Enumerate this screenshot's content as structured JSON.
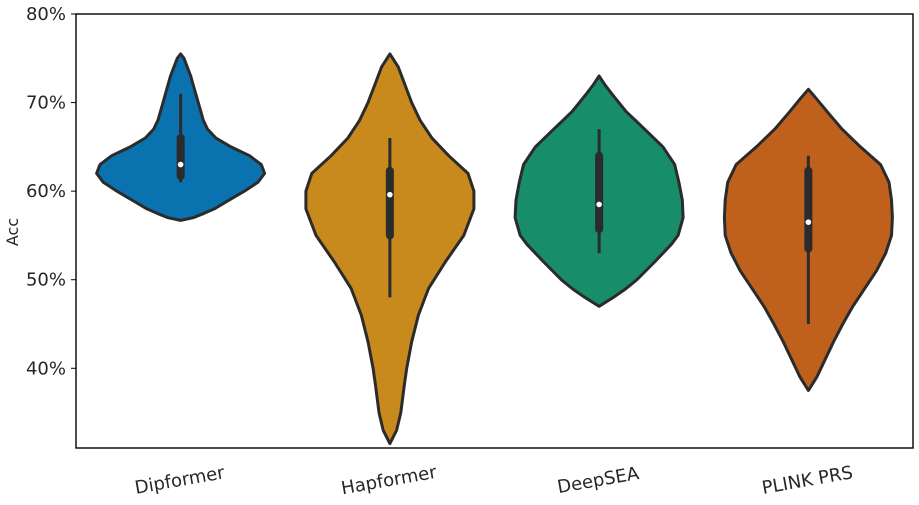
{
  "chart_data": {
    "type": "violin",
    "title": "",
    "xlabel": "",
    "ylabel": "Acc",
    "ylim": [
      0.31,
      0.8
    ],
    "yticks": [
      0.4,
      0.5,
      0.6,
      0.7,
      0.8
    ],
    "ytick_labels": [
      "40%",
      "50%",
      "60%",
      "70%",
      "80%"
    ],
    "categories": [
      "Dipformer",
      "Hapformer",
      "DeepSEA",
      "PLINK PRS"
    ],
    "colors": [
      "#0b72b0",
      "#c98a1d",
      "#178d6a",
      "#c0601d"
    ],
    "grid": false,
    "legend": "none",
    "series": [
      {
        "category": "Dipformer",
        "min": 0.61,
        "q1": 0.617,
        "median": 0.63,
        "q3": 0.66,
        "max": 0.71,
        "violin_range": [
          0.567,
          0.755
        ],
        "density": [
          [
            0.567,
            0.0
          ],
          [
            0.57,
            0.15
          ],
          [
            0.575,
            0.28
          ],
          [
            0.58,
            0.4
          ],
          [
            0.59,
            0.58
          ],
          [
            0.6,
            0.76
          ],
          [
            0.61,
            0.92
          ],
          [
            0.62,
            1.0
          ],
          [
            0.63,
            0.96
          ],
          [
            0.64,
            0.82
          ],
          [
            0.65,
            0.6
          ],
          [
            0.66,
            0.42
          ],
          [
            0.67,
            0.32
          ],
          [
            0.68,
            0.27
          ],
          [
            0.69,
            0.24
          ],
          [
            0.7,
            0.21
          ],
          [
            0.71,
            0.18
          ],
          [
            0.72,
            0.15
          ],
          [
            0.73,
            0.12
          ],
          [
            0.74,
            0.08
          ],
          [
            0.75,
            0.04
          ],
          [
            0.755,
            0.0
          ]
        ]
      },
      {
        "category": "Hapformer",
        "min": 0.48,
        "q1": 0.55,
        "median": 0.596,
        "q3": 0.623,
        "max": 0.66,
        "violin_range": [
          0.315,
          0.755
        ],
        "density": [
          [
            0.315,
            0.0
          ],
          [
            0.33,
            0.08
          ],
          [
            0.35,
            0.13
          ],
          [
            0.38,
            0.17
          ],
          [
            0.4,
            0.2
          ],
          [
            0.43,
            0.26
          ],
          [
            0.46,
            0.34
          ],
          [
            0.49,
            0.46
          ],
          [
            0.52,
            0.66
          ],
          [
            0.55,
            0.88
          ],
          [
            0.58,
            1.0
          ],
          [
            0.6,
            1.0
          ],
          [
            0.62,
            0.93
          ],
          [
            0.64,
            0.7
          ],
          [
            0.66,
            0.5
          ],
          [
            0.68,
            0.36
          ],
          [
            0.7,
            0.26
          ],
          [
            0.72,
            0.18
          ],
          [
            0.74,
            0.1
          ],
          [
            0.755,
            0.0
          ]
        ]
      },
      {
        "category": "DeepSEA",
        "min": 0.53,
        "q1": 0.557,
        "median": 0.585,
        "q3": 0.64,
        "max": 0.67,
        "violin_range": [
          0.47,
          0.73
        ],
        "density": [
          [
            0.47,
            0.0
          ],
          [
            0.48,
            0.17
          ],
          [
            0.49,
            0.32
          ],
          [
            0.5,
            0.45
          ],
          [
            0.52,
            0.66
          ],
          [
            0.54,
            0.86
          ],
          [
            0.55,
            0.94
          ],
          [
            0.57,
            1.0
          ],
          [
            0.59,
            0.99
          ],
          [
            0.61,
            0.95
          ],
          [
            0.63,
            0.9
          ],
          [
            0.65,
            0.76
          ],
          [
            0.67,
            0.54
          ],
          [
            0.69,
            0.32
          ],
          [
            0.71,
            0.15
          ],
          [
            0.72,
            0.07
          ],
          [
            0.73,
            0.0
          ]
        ]
      },
      {
        "category": "PLINK PRS",
        "min": 0.45,
        "q1": 0.535,
        "median": 0.565,
        "q3": 0.623,
        "max": 0.64,
        "violin_range": [
          0.375,
          0.715
        ],
        "density": [
          [
            0.375,
            0.0
          ],
          [
            0.39,
            0.1
          ],
          [
            0.41,
            0.2
          ],
          [
            0.43,
            0.3
          ],
          [
            0.45,
            0.41
          ],
          [
            0.47,
            0.53
          ],
          [
            0.49,
            0.67
          ],
          [
            0.51,
            0.81
          ],
          [
            0.53,
            0.92
          ],
          [
            0.55,
            0.99
          ],
          [
            0.57,
            1.0
          ],
          [
            0.59,
            0.99
          ],
          [
            0.61,
            0.96
          ],
          [
            0.63,
            0.86
          ],
          [
            0.65,
            0.62
          ],
          [
            0.67,
            0.4
          ],
          [
            0.69,
            0.22
          ],
          [
            0.705,
            0.09
          ],
          [
            0.715,
            0.0
          ]
        ]
      }
    ]
  }
}
